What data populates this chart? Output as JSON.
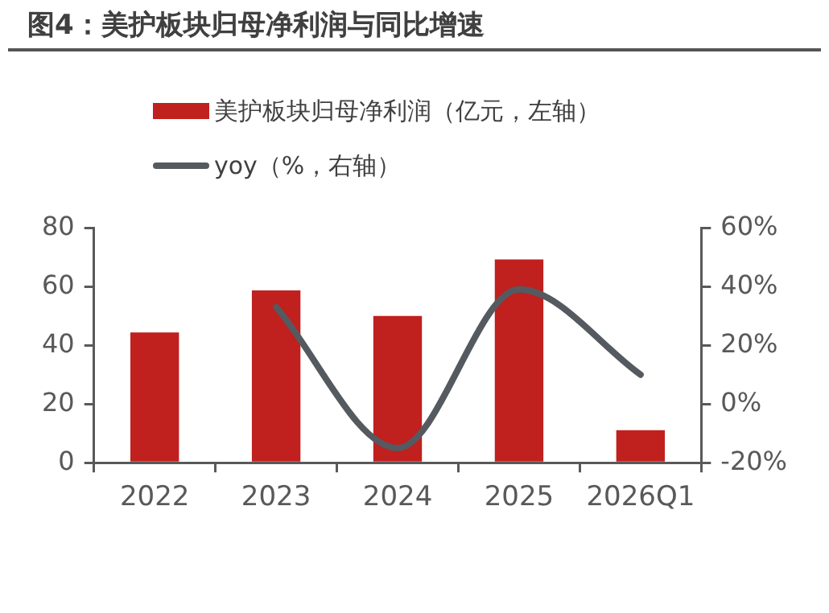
{
  "chart_data": {
    "type": "bar",
    "title": "图4：美护板块归母净利润与同比增速",
    "categories": [
      "2022",
      "2023",
      "2024",
      "2025",
      "2026Q1"
    ],
    "series": [
      {
        "name": "美护板块归母净利润（亿元，左轴）",
        "color": "#c0201e",
        "values": [
          44.4,
          58.7,
          50,
          69.2,
          11.1
        ]
      },
      {
        "name": "yoy（%，右轴）",
        "type": "line",
        "axis": "y2",
        "color": "#555a60",
        "marker": "none",
        "values": [
          null,
          33,
          -15,
          39,
          10
        ]
      }
    ],
    "ylim": [
      0,
      80
    ],
    "yticks": [
      0,
      20,
      40,
      60,
      80
    ],
    "y2lim": [
      -20,
      60
    ],
    "y2ticks": [
      {
        "value": -20,
        "label": "-20%"
      },
      {
        "value": 0,
        "label": "0%"
      },
      {
        "value": 20,
        "label": "20%"
      },
      {
        "value": 40,
        "label": "40%"
      },
      {
        "value": 60,
        "label": "60%"
      }
    ],
    "grid": false,
    "legend": "top"
  }
}
